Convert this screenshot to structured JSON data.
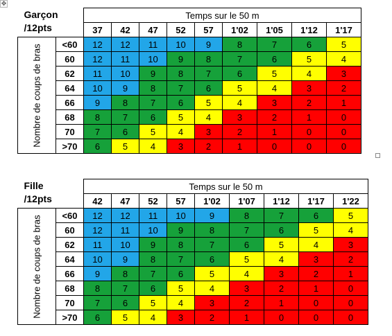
{
  "anchor_icon": "move-anchor-icon",
  "palette": {
    "blue": "#22a6e8",
    "green": "#16a13a",
    "yellow": "#ffff00",
    "red": "#ff0000"
  },
  "tables": [
    {
      "label_line1": "Garçon",
      "label_line2": "/12pts",
      "time_title": "Temps sur le 50 m",
      "row_axis_label": "Nombre de coups de bras",
      "times": [
        "37",
        "42",
        "47",
        "52",
        "57",
        "1'02",
        "1'05",
        "1'12",
        "1'17"
      ],
      "rows": [
        {
          "stroke": "<60",
          "values": [
            12,
            12,
            11,
            10,
            9,
            8,
            7,
            6,
            5
          ],
          "colors": [
            "blue",
            "blue",
            "blue",
            "blue",
            "blue",
            "green",
            "green",
            "green",
            "yellow"
          ]
        },
        {
          "stroke": "60",
          "values": [
            12,
            11,
            10,
            9,
            8,
            7,
            6,
            5,
            4
          ],
          "colors": [
            "blue",
            "blue",
            "blue",
            "green",
            "green",
            "green",
            "green",
            "yellow",
            "yellow"
          ]
        },
        {
          "stroke": "62",
          "values": [
            11,
            10,
            9,
            8,
            7,
            6,
            5,
            4,
            3
          ],
          "colors": [
            "blue",
            "blue",
            "green",
            "green",
            "green",
            "green",
            "yellow",
            "yellow",
            "red"
          ]
        },
        {
          "stroke": "64",
          "values": [
            10,
            9,
            8,
            7,
            6,
            5,
            4,
            3,
            2
          ],
          "colors": [
            "blue",
            "blue",
            "green",
            "green",
            "green",
            "yellow",
            "yellow",
            "red",
            "red"
          ]
        },
        {
          "stroke": "66",
          "values": [
            9,
            8,
            7,
            6,
            5,
            4,
            3,
            2,
            1
          ],
          "colors": [
            "blue",
            "green",
            "green",
            "green",
            "yellow",
            "yellow",
            "red",
            "red",
            "red"
          ]
        },
        {
          "stroke": "68",
          "values": [
            8,
            7,
            6,
            5,
            4,
            3,
            2,
            1,
            0
          ],
          "colors": [
            "green",
            "green",
            "green",
            "yellow",
            "yellow",
            "red",
            "red",
            "red",
            "red"
          ]
        },
        {
          "stroke": "70",
          "values": [
            7,
            6,
            5,
            4,
            3,
            2,
            1,
            0,
            0
          ],
          "colors": [
            "green",
            "green",
            "yellow",
            "yellow",
            "red",
            "red",
            "red",
            "red",
            "red"
          ]
        },
        {
          "stroke": ">70",
          "values": [
            6,
            5,
            4,
            3,
            2,
            1,
            0,
            0,
            0
          ],
          "colors": [
            "green",
            "yellow",
            "yellow",
            "red",
            "red",
            "red",
            "red",
            "red",
            "red"
          ]
        }
      ]
    },
    {
      "label_line1": "Fille",
      "label_line2": "/12pts",
      "time_title": "Temps sur le 50 m",
      "row_axis_label": "Nombre de coups de bras",
      "times": [
        "42",
        "47",
        "52",
        "57",
        "1'02",
        "1'07",
        "1'12",
        "1'17",
        "1'22"
      ],
      "rows": [
        {
          "stroke": "<60",
          "values": [
            12,
            12,
            11,
            10,
            9,
            8,
            7,
            6,
            5
          ],
          "colors": [
            "blue",
            "blue",
            "blue",
            "blue",
            "blue",
            "green",
            "green",
            "green",
            "yellow"
          ]
        },
        {
          "stroke": "60",
          "values": [
            12,
            11,
            10,
            9,
            8,
            7,
            6,
            5,
            4
          ],
          "colors": [
            "blue",
            "blue",
            "blue",
            "green",
            "green",
            "green",
            "green",
            "yellow",
            "yellow"
          ]
        },
        {
          "stroke": "62",
          "values": [
            11,
            10,
            9,
            8,
            7,
            6,
            5,
            4,
            3
          ],
          "colors": [
            "blue",
            "blue",
            "green",
            "green",
            "green",
            "green",
            "yellow",
            "yellow",
            "red"
          ]
        },
        {
          "stroke": "64",
          "values": [
            10,
            9,
            8,
            7,
            6,
            5,
            4,
            3,
            2
          ],
          "colors": [
            "blue",
            "blue",
            "green",
            "green",
            "green",
            "yellow",
            "yellow",
            "red",
            "red"
          ]
        },
        {
          "stroke": "66",
          "values": [
            9,
            8,
            7,
            6,
            5,
            4,
            3,
            2,
            1
          ],
          "colors": [
            "blue",
            "green",
            "green",
            "green",
            "yellow",
            "yellow",
            "red",
            "red",
            "red"
          ]
        },
        {
          "stroke": "68",
          "values": [
            8,
            7,
            6,
            5,
            4,
            3,
            2,
            1,
            0
          ],
          "colors": [
            "green",
            "green",
            "green",
            "yellow",
            "yellow",
            "red",
            "red",
            "red",
            "red"
          ]
        },
        {
          "stroke": "70",
          "values": [
            7,
            6,
            5,
            4,
            3,
            2,
            1,
            0,
            0
          ],
          "colors": [
            "green",
            "green",
            "yellow",
            "yellow",
            "red",
            "red",
            "red",
            "red",
            "red"
          ]
        },
        {
          "stroke": ">70",
          "values": [
            6,
            5,
            4,
            3,
            2,
            1,
            0,
            0,
            0
          ],
          "colors": [
            "green",
            "yellow",
            "yellow",
            "red",
            "red",
            "red",
            "red",
            "red",
            "red"
          ]
        }
      ]
    }
  ]
}
